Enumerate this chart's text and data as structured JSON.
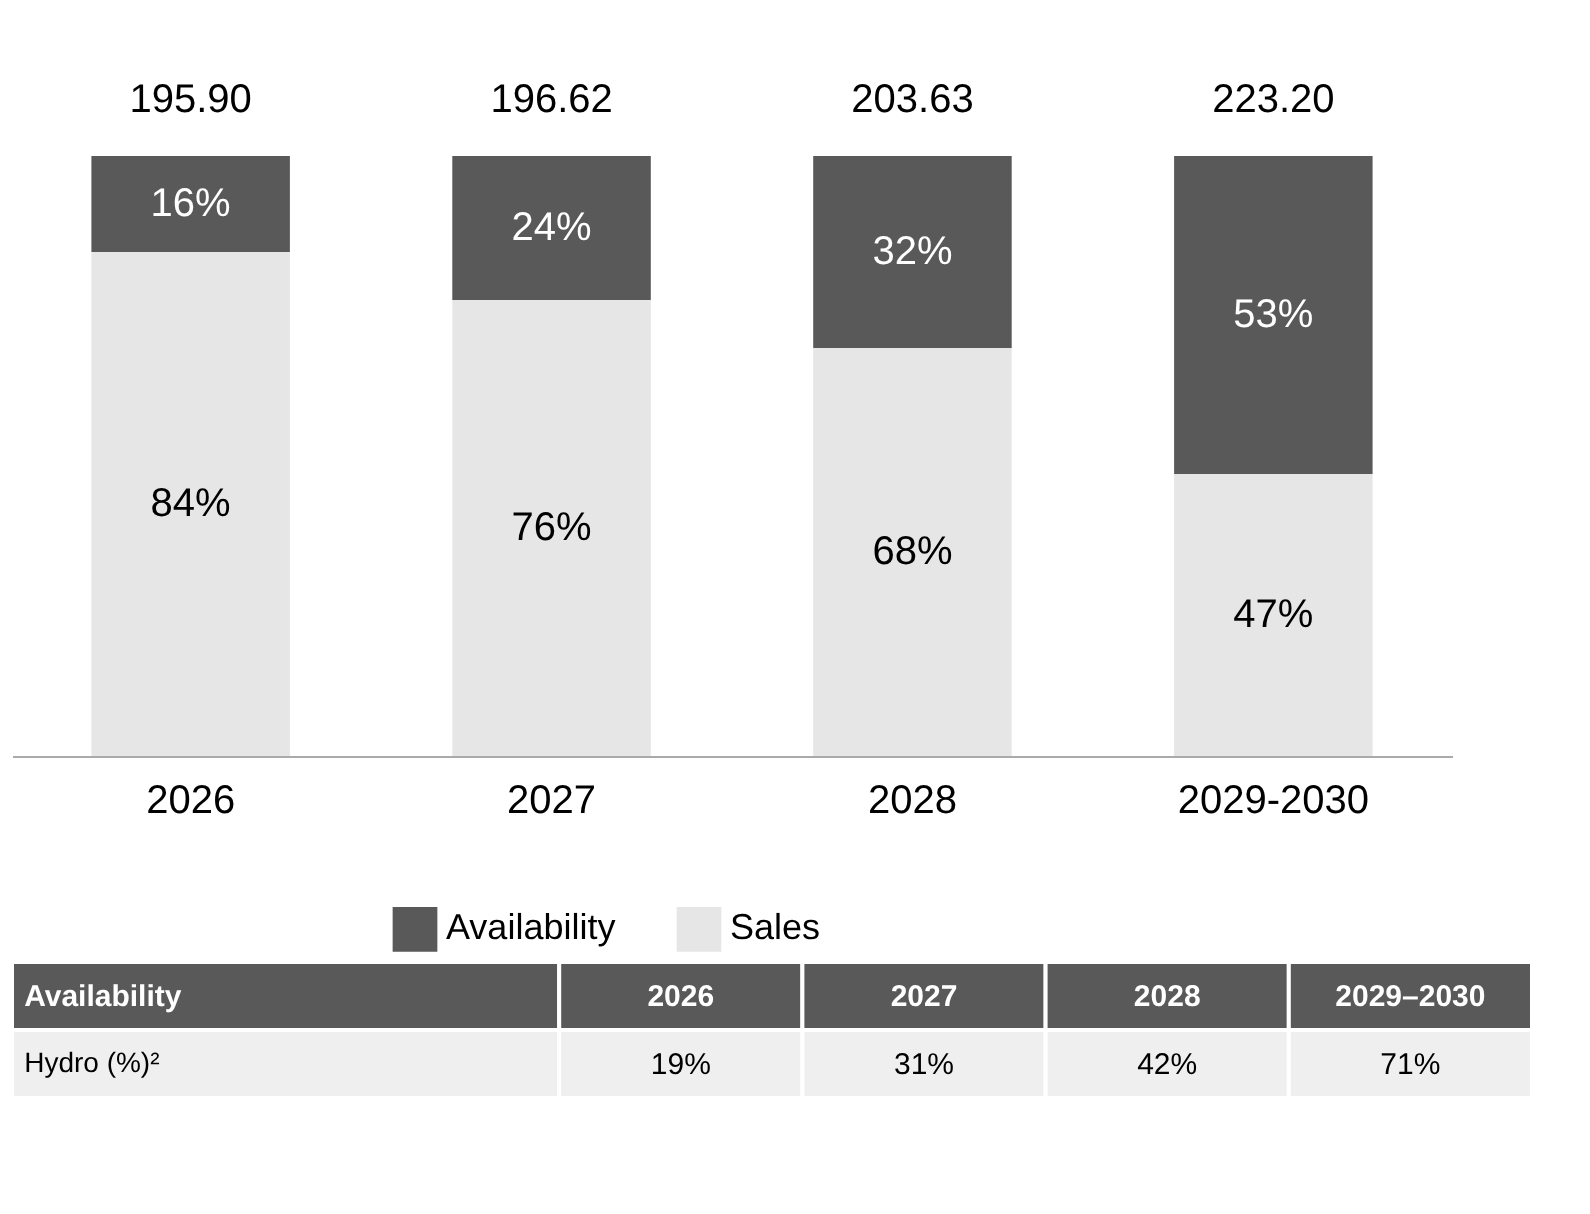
{
  "chart_data": [
    {
      "type": "bar",
      "stacked": true,
      "categories": [
        "2026",
        "2027",
        "2028",
        "2029-2030"
      ],
      "ylim": [
        0,
        100
      ],
      "tick_labels": "x",
      "legend": "bottom",
      "series": [
        {
          "name": "Sales",
          "color": "#e6e6e6",
          "values": [
            84,
            76,
            68,
            47
          ],
          "value_labels": [
            "84%",
            "76%",
            "68%",
            "47%"
          ]
        },
        {
          "name": "Availability",
          "color": "#595959",
          "values": [
            16,
            24,
            32,
            53
          ],
          "value_labels": [
            "16%",
            "24%",
            "32%",
            "53%"
          ]
        }
      ],
      "annotations": [
        "195.90",
        "196.62",
        "203.63",
        "223.20"
      ]
    },
    {
      "type": "other",
      "title": "Availability",
      "categories": [
        "2026",
        "2027",
        "2028",
        "2029–2030"
      ],
      "y_categories": [
        "Hydro (%)²"
      ],
      "value_labels": [
        "19%",
        "31%",
        "42%",
        "71%"
      ]
    }
  ]
}
